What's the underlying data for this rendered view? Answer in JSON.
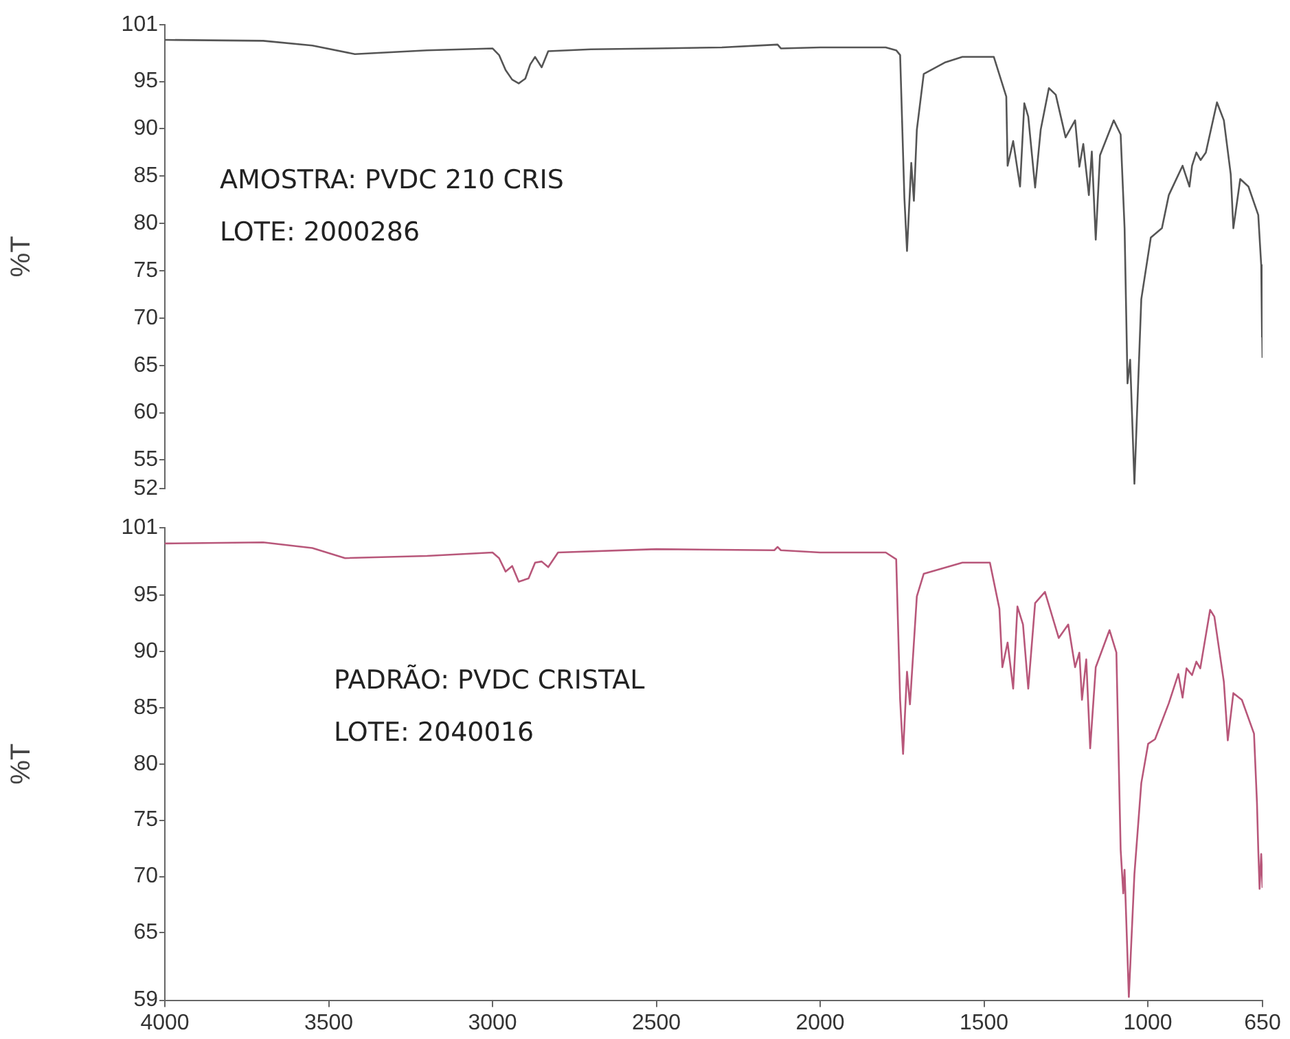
{
  "chart_data": [
    {
      "type": "line",
      "ylabel": "%T",
      "annotations": [
        "AMOSTRA: PVDC 210 CRIS",
        "LOTE: 2000286"
      ],
      "xlim": [
        4000,
        650
      ],
      "xticks": [
        4000,
        3500,
        3000,
        2500,
        2000,
        1500,
        1000,
        650
      ],
      "ylim": [
        52,
        101
      ],
      "yticks": [
        52,
        55,
        60,
        65,
        70,
        75,
        80,
        85,
        90,
        95,
        101
      ],
      "tick_labels": "y",
      "legend": false,
      "marker": "none",
      "line_style": "solid",
      "series": [
        {
          "color": "#555555",
          "x": [
            4000,
            3700,
            3550,
            3420,
            3200,
            3000,
            2980,
            2960,
            2940,
            2920,
            2900,
            2885,
            2870,
            2850,
            2830,
            2700,
            2500,
            2300,
            2130,
            2120,
            2000,
            1800,
            1768,
            1756,
            1743,
            1735,
            1722,
            1714,
            1705,
            1684,
            1620,
            1566,
            1470,
            1432,
            1428,
            1411,
            1390,
            1377,
            1365,
            1344,
            1327,
            1302,
            1281,
            1251,
            1222,
            1209,
            1197,
            1180,
            1171,
            1159,
            1146,
            1104,
            1083,
            1071,
            1062,
            1054,
            1041,
            1020,
            991,
            957,
            936,
            894,
            873,
            865,
            852,
            839,
            823,
            789,
            768,
            747,
            739,
            718,
            693,
            663,
            654,
            652,
            651,
            650
          ],
          "values": [
            99.4,
            99.3,
            98.8,
            97.9,
            98.3,
            98.5,
            97.8,
            96.2,
            95.2,
            94.8,
            95.3,
            96.8,
            97.6,
            96.5,
            98.2,
            98.4,
            98.5,
            98.6,
            98.9,
            98.5,
            98.6,
            98.6,
            98.3,
            97.8,
            82.7,
            77.1,
            86.4,
            82.4,
            89.9,
            95.8,
            97,
            97.6,
            97.6,
            93.4,
            86.1,
            88.7,
            83.9,
            92.7,
            91.3,
            83.8,
            89.9,
            94.3,
            93.6,
            89.1,
            90.9,
            86,
            88.4,
            83,
            87.6,
            78.3,
            87.2,
            90.9,
            89.4,
            79.5,
            63.1,
            65.6,
            52.5,
            72,
            78.5,
            79.5,
            83,
            86.1,
            83.9,
            86.1,
            87.5,
            86.7,
            87.5,
            92.8,
            90.9,
            85.2,
            79.5,
            84.7,
            83.9,
            80.9,
            75.6,
            68,
            70,
            65.8
          ]
        }
      ]
    },
    {
      "type": "line",
      "ylabel": "%T",
      "annotations": [
        "PADRÃO: PVDC CRISTAL",
        "LOTE: 2040016"
      ],
      "xlim": [
        4000,
        650
      ],
      "xticks": [
        4000,
        3500,
        3000,
        2500,
        2000,
        1500,
        1000,
        650
      ],
      "ylim": [
        59,
        101
      ],
      "yticks": [
        59,
        65,
        70,
        75,
        80,
        85,
        90,
        95,
        101
      ],
      "legend": false,
      "marker": "none",
      "line_style": "solid",
      "series": [
        {
          "color": "#b8577a",
          "x": [
            4000,
            3700,
            3550,
            3450,
            3200,
            3000,
            2980,
            2960,
            2940,
            2920,
            2890,
            2870,
            2850,
            2830,
            2800,
            2500,
            2140,
            2130,
            2120,
            2000,
            1800,
            1768,
            1756,
            1747,
            1735,
            1726,
            1705,
            1684,
            1566,
            1482,
            1453,
            1444,
            1428,
            1411,
            1398,
            1381,
            1365,
            1344,
            1314,
            1272,
            1243,
            1222,
            1209,
            1201,
            1188,
            1176,
            1159,
            1117,
            1096,
            1083,
            1075,
            1071,
            1058,
            1041,
            1020,
            999,
            978,
            936,
            907,
            894,
            882,
            865,
            852,
            840,
            810,
            797,
            768,
            756,
            739,
            713,
            676,
            667,
            663,
            659,
            654,
            650
          ],
          "values": [
            99.6,
            99.7,
            99.2,
            98.3,
            98.5,
            98.8,
            98.3,
            97.1,
            97.6,
            96.2,
            96.5,
            97.9,
            98,
            97.5,
            98.8,
            99.1,
            99,
            99.3,
            99,
            98.8,
            98.8,
            98.2,
            85.7,
            80.9,
            88.2,
            85.3,
            94.9,
            96.9,
            97.9,
            97.9,
            93.8,
            88.6,
            90.8,
            86.7,
            94,
            92.4,
            86.7,
            94.3,
            95.3,
            91.2,
            92.4,
            88.6,
            89.9,
            85.7,
            89.3,
            81.4,
            88.6,
            91.9,
            89.9,
            72.4,
            68.5,
            70.6,
            59.3,
            70.2,
            78.3,
            81.8,
            82.2,
            85.4,
            88,
            85.9,
            88.5,
            87.9,
            89.1,
            88.5,
            93.7,
            93.1,
            87.3,
            82.1,
            86.3,
            85.7,
            82.7,
            76.6,
            72.4,
            68.9,
            72,
            69
          ]
        }
      ]
    }
  ]
}
